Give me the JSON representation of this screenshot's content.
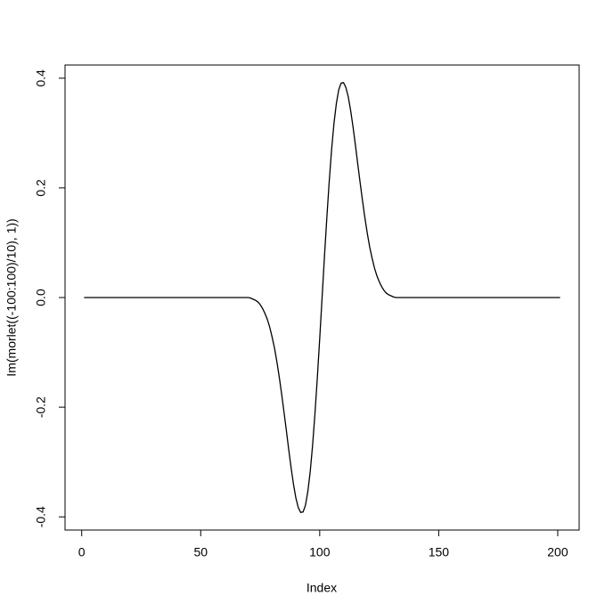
{
  "chart_data": {
    "type": "line",
    "xlabel": "Index",
    "ylabel": "Im(morlet((-100:100)/10), 1))",
    "color": "#000000",
    "xlim": [
      -7,
      209
    ],
    "ylim": [
      -0.424,
      0.424
    ],
    "xticks": [
      0,
      50,
      100,
      150,
      200
    ],
    "yticks": [
      -0.4,
      -0.2,
      {
        "value": 0,
        "label": "0.0"
      },
      0.2,
      0.4
    ],
    "x": [
      1,
      2,
      3,
      4,
      5,
      6,
      7,
      8,
      9,
      10,
      11,
      12,
      13,
      14,
      15,
      16,
      17,
      18,
      19,
      20,
      21,
      22,
      23,
      24,
      25,
      26,
      27,
      28,
      29,
      30,
      31,
      32,
      33,
      34,
      35,
      36,
      37,
      38,
      39,
      40,
      41,
      42,
      43,
      44,
      45,
      46,
      47,
      48,
      49,
      50,
      51,
      52,
      53,
      54,
      55,
      56,
      57,
      58,
      59,
      60,
      61,
      62,
      63,
      64,
      65,
      66,
      67,
      68,
      69,
      70,
      71,
      72,
      73,
      74,
      75,
      76,
      77,
      78,
      79,
      80,
      81,
      82,
      83,
      84,
      85,
      86,
      87,
      88,
      89,
      90,
      91,
      92,
      93,
      94,
      95,
      96,
      97,
      98,
      99,
      100,
      101,
      102,
      103,
      104,
      105,
      106,
      107,
      108,
      109,
      110,
      111,
      112,
      113,
      114,
      115,
      116,
      117,
      118,
      119,
      120,
      121,
      122,
      123,
      124,
      125,
      126,
      127,
      128,
      129,
      130,
      131,
      132,
      133,
      134,
      135,
      136,
      137,
      138,
      139,
      140,
      141,
      142,
      143,
      144,
      145,
      146,
      147,
      148,
      149,
      150,
      151,
      152,
      153,
      154,
      155,
      156,
      157,
      158,
      159,
      160,
      161,
      162,
      163,
      164,
      165,
      166,
      167,
      168,
      169,
      170,
      171,
      172,
      173,
      174,
      175,
      176,
      177,
      178,
      179,
      180,
      181,
      182,
      183,
      184,
      185,
      186,
      187,
      188,
      189,
      190,
      191,
      192,
      193,
      194,
      195,
      196,
      197,
      198,
      199,
      200,
      201
    ],
    "values": [
      0,
      0,
      0,
      0,
      0,
      0,
      0,
      0,
      0,
      0,
      0,
      0,
      0,
      0,
      0,
      0,
      0,
      0,
      0,
      0,
      0,
      0,
      0,
      0,
      0,
      0,
      0,
      0,
      0,
      0,
      0,
      0,
      0,
      0,
      0,
      0,
      0,
      0,
      0,
      0,
      0,
      0,
      0,
      0,
      0,
      0,
      0,
      0,
      0,
      0,
      0,
      0,
      0,
      0,
      0,
      0,
      0,
      0,
      0,
      0,
      0,
      0,
      0,
      0,
      0,
      0,
      0,
      0,
      0,
      0,
      -0.001,
      -0.003,
      -0.005,
      -0.008,
      -0.013,
      -0.02,
      -0.029,
      -0.04,
      -0.054,
      -0.072,
      -0.092,
      -0.117,
      -0.145,
      -0.176,
      -0.209,
      -0.243,
      -0.278,
      -0.311,
      -0.341,
      -0.366,
      -0.383,
      -0.392,
      -0.391,
      -0.379,
      -0.354,
      -0.318,
      -0.27,
      -0.212,
      -0.146,
      -0.075,
      0,
      0.075,
      0.146,
      0.212,
      0.27,
      0.318,
      0.354,
      0.379,
      0.391,
      0.392,
      0.383,
      0.366,
      0.341,
      0.311,
      0.278,
      0.243,
      0.209,
      0.176,
      0.145,
      0.117,
      0.092,
      0.072,
      0.054,
      0.04,
      0.029,
      0.02,
      0.013,
      0.008,
      0.005,
      0.003,
      0.001,
      0,
      0,
      0,
      0,
      0,
      0,
      0,
      0,
      0,
      0,
      0,
      0,
      0,
      0,
      0,
      0,
      0,
      0,
      0,
      0,
      0,
      0,
      0,
      0,
      0,
      0,
      0,
      0,
      0,
      0,
      0,
      0,
      0,
      0,
      0,
      0,
      0,
      0,
      0,
      0,
      0,
      0,
      0,
      0,
      0,
      0,
      0,
      0,
      0,
      0,
      0,
      0,
      0,
      0,
      0,
      0,
      0,
      0,
      0,
      0,
      0,
      0,
      0,
      0,
      0,
      0,
      0,
      0,
      0,
      0
    ]
  }
}
